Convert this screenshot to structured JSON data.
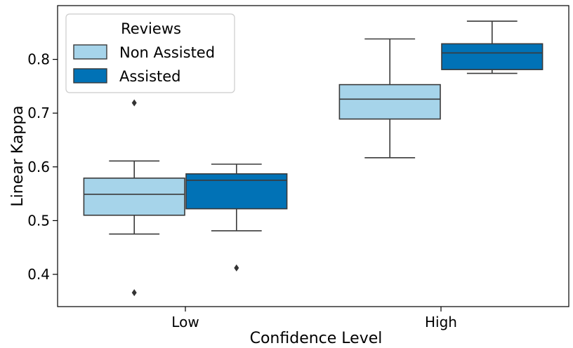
{
  "chart_data": {
    "type": "boxplot",
    "xlabel": "Confidence Level",
    "ylabel": "Linear Kappa",
    "categories": [
      "Low",
      "High"
    ],
    "ylim": [
      0.34,
      0.9
    ],
    "yticks": [
      0.4,
      0.5,
      0.6,
      0.7,
      0.8
    ],
    "ytick_labels": [
      "0.4",
      "0.5",
      "0.6",
      "0.7",
      "0.8"
    ],
    "grid": false,
    "legend": {
      "title": "Reviews",
      "placement": "top-left"
    },
    "series": [
      {
        "name": "Non Assisted",
        "color": "#a6d4ea",
        "boxes": [
          {
            "category": "Low",
            "whisker_low": 0.475,
            "q1": 0.51,
            "median": 0.549,
            "q3": 0.579,
            "whisker_high": 0.611,
            "outliers": [
              0.719,
              0.366
            ]
          },
          {
            "category": "High",
            "whisker_low": 0.617,
            "q1": 0.689,
            "median": 0.726,
            "q3": 0.753,
            "whisker_high": 0.838,
            "outliers": []
          }
        ]
      },
      {
        "name": "Assisted",
        "color": "#0172b6",
        "boxes": [
          {
            "category": "Low",
            "whisker_low": 0.481,
            "q1": 0.522,
            "median": 0.575,
            "q3": 0.587,
            "whisker_high": 0.605,
            "outliers": [
              0.412
            ]
          },
          {
            "category": "High",
            "whisker_low": 0.774,
            "q1": 0.781,
            "median": 0.812,
            "q3": 0.829,
            "whisker_high": 0.871,
            "outliers": []
          }
        ]
      }
    ]
  }
}
